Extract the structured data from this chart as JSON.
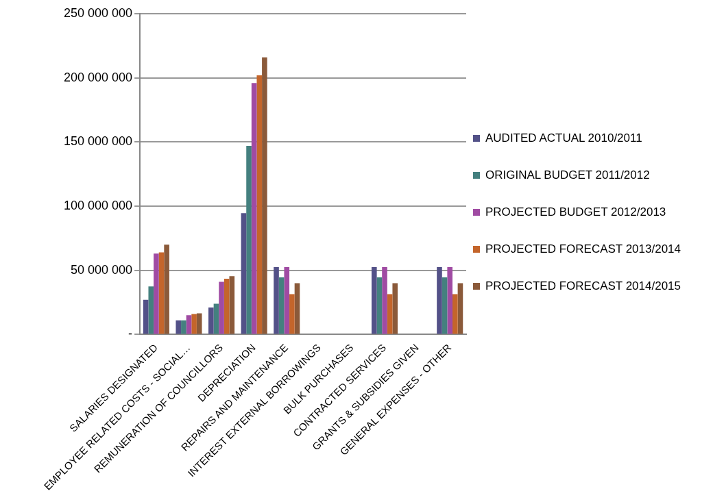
{
  "chart_data": {
    "type": "bar",
    "categories": [
      "SALARIES DESIGNATED",
      "EMPLOYEE RELATED COSTS - SOCIAL…",
      "REMUNERATION OF COUNCILLORS",
      "DEPRECIATION",
      "REPAIRS AND MAINTENANCE",
      "INTEREST EXTERNAL BORROWINGS",
      "BULK PURCHASES",
      "CONTRACTED SERVICES",
      "GRANTS & SUBSIDIES GIVEN",
      "GENERAL EXPENSES - OTHER"
    ],
    "series": [
      {
        "name": "AUDITED ACTUAL 2010/2011",
        "color": "#535188",
        "values": [
          27000000,
          11000000,
          21000000,
          94500000,
          52500000,
          0,
          0,
          52500000,
          0,
          52500000
        ]
      },
      {
        "name": "ORIGINAL BUDGET 2011/2012",
        "color": "#44807f",
        "values": [
          37500000,
          11000000,
          24000000,
          147000000,
          44500000,
          0,
          0,
          44500000,
          0,
          44500000
        ]
      },
      {
        "name": "PROJECTED BUDGET 2012/2013",
        "color": "#a04ba3",
        "values": [
          63000000,
          15000000,
          41000000,
          196000000,
          52500000,
          0,
          0,
          52500000,
          0,
          52500000
        ]
      },
      {
        "name": "PROJECTED FORECAST 2013/2014",
        "color": "#c4652b",
        "values": [
          64000000,
          16000000,
          43500000,
          202000000,
          31500000,
          0,
          0,
          31500000,
          0,
          31500000
        ]
      },
      {
        "name": "PROJECTED FORECAST 2014/2015",
        "color": "#8b5a3a",
        "values": [
          70000000,
          16500000,
          45500000,
          216000000,
          40000000,
          0,
          0,
          40000000,
          0,
          40000000
        ]
      }
    ],
    "ylim": [
      0,
      250000000
    ],
    "yticks": [
      {
        "value": 0,
        "label": "-"
      },
      {
        "value": 50000000,
        "label": "50 000 000"
      },
      {
        "value": 100000000,
        "label": "100 000 000"
      },
      {
        "value": 150000000,
        "label": "150 000 000"
      },
      {
        "value": 200000000,
        "label": "200 000 000"
      },
      {
        "value": 250000000,
        "label": "250 000 000"
      }
    ],
    "grid": "y",
    "legend": "right"
  }
}
